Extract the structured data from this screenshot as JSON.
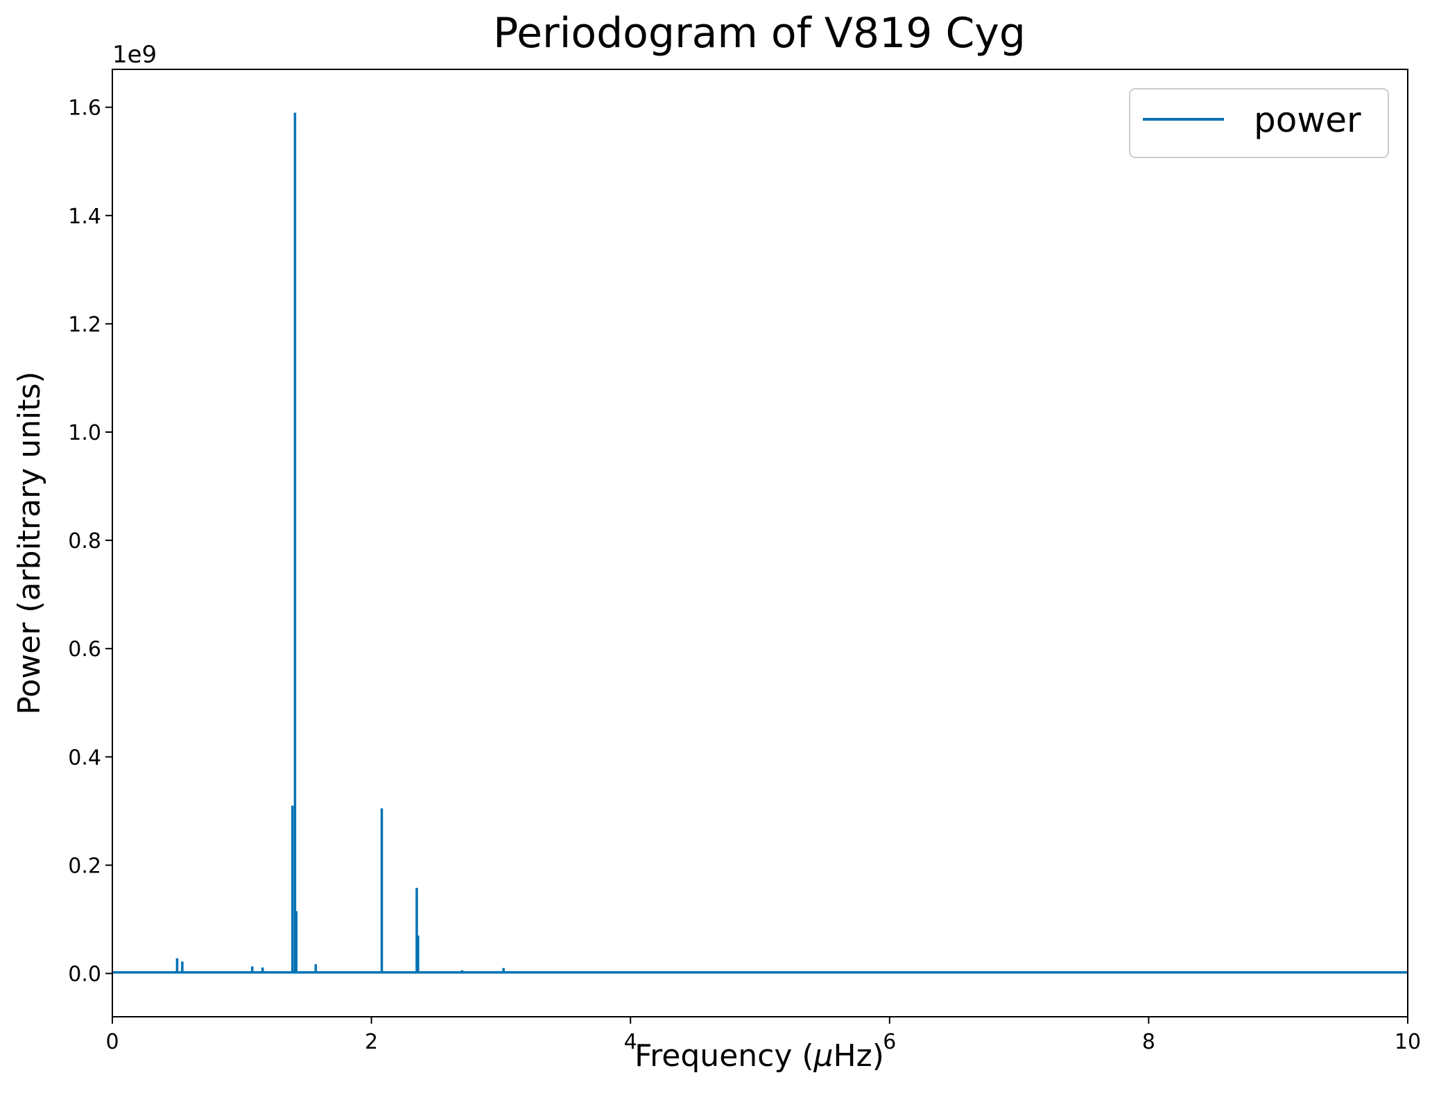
{
  "chart_data": {
    "type": "line",
    "title": "Periodogram of V819 Cyg",
    "xlabel_prefix": "Frequency (",
    "xlabel_mu": "μ",
    "xlabel_suffix": "Hz)",
    "ylabel": "Power (arbitrary units)",
    "y_offset_label": "1e9",
    "xlim": [
      0,
      10
    ],
    "ylim": [
      -0.08,
      1.67
    ],
    "y_scale_factor": 1000000000,
    "x_ticks": [
      0,
      2,
      4,
      6,
      8,
      10
    ],
    "x_tick_labels": [
      "0",
      "2",
      "4",
      "6",
      "8",
      "10"
    ],
    "y_ticks": [
      0.0,
      0.2,
      0.4,
      0.6,
      0.8,
      1.0,
      1.2,
      1.4,
      1.6
    ],
    "y_tick_labels": [
      "0.0",
      "0.2",
      "0.4",
      "0.6",
      "0.8",
      "1.0",
      "1.2",
      "1.4",
      "1.6"
    ],
    "grid": false,
    "legend_position": "top-right",
    "series": [
      {
        "name": "power",
        "color": "#0072b2",
        "baseline": 0.002,
        "peaks": [
          {
            "x": 0.5,
            "y": 0.028
          },
          {
            "x": 0.54,
            "y": 0.022
          },
          {
            "x": 1.08,
            "y": 0.013
          },
          {
            "x": 1.16,
            "y": 0.011
          },
          {
            "x": 1.39,
            "y": 0.31
          },
          {
            "x": 1.41,
            "y": 1.59
          },
          {
            "x": 1.42,
            "y": 0.115
          },
          {
            "x": 1.57,
            "y": 0.017
          },
          {
            "x": 2.08,
            "y": 0.305
          },
          {
            "x": 2.35,
            "y": 0.158
          },
          {
            "x": 2.36,
            "y": 0.07
          },
          {
            "x": 2.7,
            "y": 0.006
          },
          {
            "x": 3.02,
            "y": 0.01
          }
        ]
      }
    ]
  }
}
